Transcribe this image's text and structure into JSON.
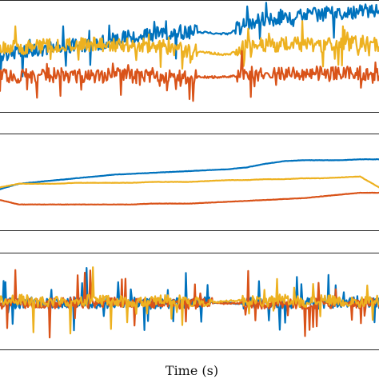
{
  "chart_data": {
    "type": "line",
    "xlabel": "Time (s)",
    "x_range": [
      0,
      100
    ],
    "grid": false,
    "legend": "none",
    "colors": [
      "#0072BD",
      "#D95319",
      "#EDB120"
    ],
    "panels": [
      {
        "panel": "top",
        "ylim": [
          0,
          100
        ],
        "series": [
          {
            "color": "#0072BD",
            "x": [
              0,
              5,
              10,
              15,
              20,
              25,
              30,
              35,
              40,
              45,
              50,
              55,
              60,
              65,
              70,
              75,
              80,
              85,
              90,
              95,
              100
            ],
            "y": [
              52,
              54,
              56,
              58,
              60,
              62,
              65,
              68,
              70,
              72,
              73,
              72,
              71,
              80,
              85,
              86,
              88,
              90,
              91,
              92,
              92
            ]
          },
          {
            "color": "#EDB120",
            "x": [
              0,
              5,
              10,
              15,
              20,
              25,
              30,
              35,
              40,
              45,
              50,
              55,
              60,
              65,
              70,
              75,
              80,
              85,
              90,
              95,
              100
            ],
            "y": [
              58,
              58,
              59,
              60,
              60,
              61,
              61,
              60,
              60,
              58,
              55,
              53,
              51,
              60,
              60,
              61,
              61,
              60,
              61,
              62,
              60
            ]
          },
          {
            "color": "#D95319",
            "x": [
              0,
              5,
              10,
              15,
              20,
              25,
              30,
              35,
              40,
              45,
              50,
              55,
              60,
              65,
              70,
              75,
              80,
              85,
              90,
              95,
              100
            ],
            "y": [
              32,
              31,
              31,
              32,
              31,
              31,
              32,
              31,
              31,
              30,
              30,
              30,
              30,
              34,
              33,
              33,
              34,
              33,
              33,
              34,
              33
            ]
          }
        ]
      },
      {
        "panel": "middle",
        "ylim": [
          0,
          100
        ],
        "series": [
          {
            "color": "#0072BD",
            "x": [
              0,
              5,
              10,
              15,
              20,
              25,
              30,
              35,
              40,
              45,
              50,
              55,
              60,
              65,
              70,
              75,
              80,
              85,
              90,
              95,
              100
            ],
            "y": [
              42,
              48,
              50,
              52,
              54,
              56,
              58,
              59,
              60,
              61,
              62,
              63,
              64,
              66,
              70,
              73,
              74,
              74,
              74,
              75,
              75
            ]
          },
          {
            "color": "#EDB120",
            "x": [
              0,
              5,
              10,
              15,
              20,
              25,
              30,
              35,
              40,
              45,
              50,
              55,
              60,
              65,
              70,
              75,
              80,
              85,
              90,
              95,
              100
            ],
            "y": [
              44,
              48,
              48,
              48,
              49,
              49,
              49,
              49,
              50,
              50,
              50,
              51,
              52,
              52,
              53,
              53,
              54,
              54,
              55,
              56,
              44
            ]
          },
          {
            "color": "#D95319",
            "x": [
              0,
              5,
              10,
              15,
              20,
              25,
              30,
              35,
              40,
              45,
              50,
              55,
              60,
              65,
              70,
              75,
              80,
              85,
              90,
              95,
              100
            ],
            "y": [
              30,
              25,
              25,
              25,
              25,
              25,
              25,
              25,
              26,
              26,
              26,
              27,
              28,
              29,
              30,
              31,
              32,
              34,
              36,
              38,
              38
            ]
          }
        ]
      },
      {
        "panel": "bottom",
        "ylim": [
          0,
          100
        ],
        "series": [
          {
            "color": "#0072BD",
            "x": [
              0,
              5,
              10,
              15,
              20,
              25,
              30,
              35,
              40,
              45,
              50,
              55,
              60,
              65,
              70,
              75,
              80,
              85,
              90,
              95,
              100
            ],
            "y": [
              48,
              47,
              49,
              46,
              50,
              47,
              48,
              49,
              47,
              48,
              48,
              49,
              48,
              47,
              50,
              46,
              49,
              47,
              48,
              50,
              48
            ]
          },
          {
            "color": "#D95319",
            "x": [
              0,
              5,
              10,
              15,
              20,
              25,
              30,
              35,
              40,
              45,
              50,
              55,
              60,
              65,
              70,
              75,
              80,
              85,
              90,
              95,
              100
            ],
            "y": [
              46,
              48,
              47,
              47,
              49,
              46,
              48,
              47,
              48,
              47,
              47,
              48,
              47,
              48,
              46,
              48,
              47,
              48,
              47,
              48,
              47
            ]
          },
          {
            "color": "#EDB120",
            "x": [
              0,
              5,
              10,
              15,
              20,
              25,
              30,
              35,
              40,
              45,
              50,
              55,
              60,
              65,
              70,
              75,
              80,
              85,
              90,
              95,
              100
            ],
            "y": [
              50,
              52,
              49,
              51,
              48,
              53,
              50,
              49,
              51,
              52,
              50,
              48,
              50,
              51,
              49,
              53,
              48,
              52,
              50,
              49,
              51
            ]
          }
        ]
      }
    ]
  }
}
